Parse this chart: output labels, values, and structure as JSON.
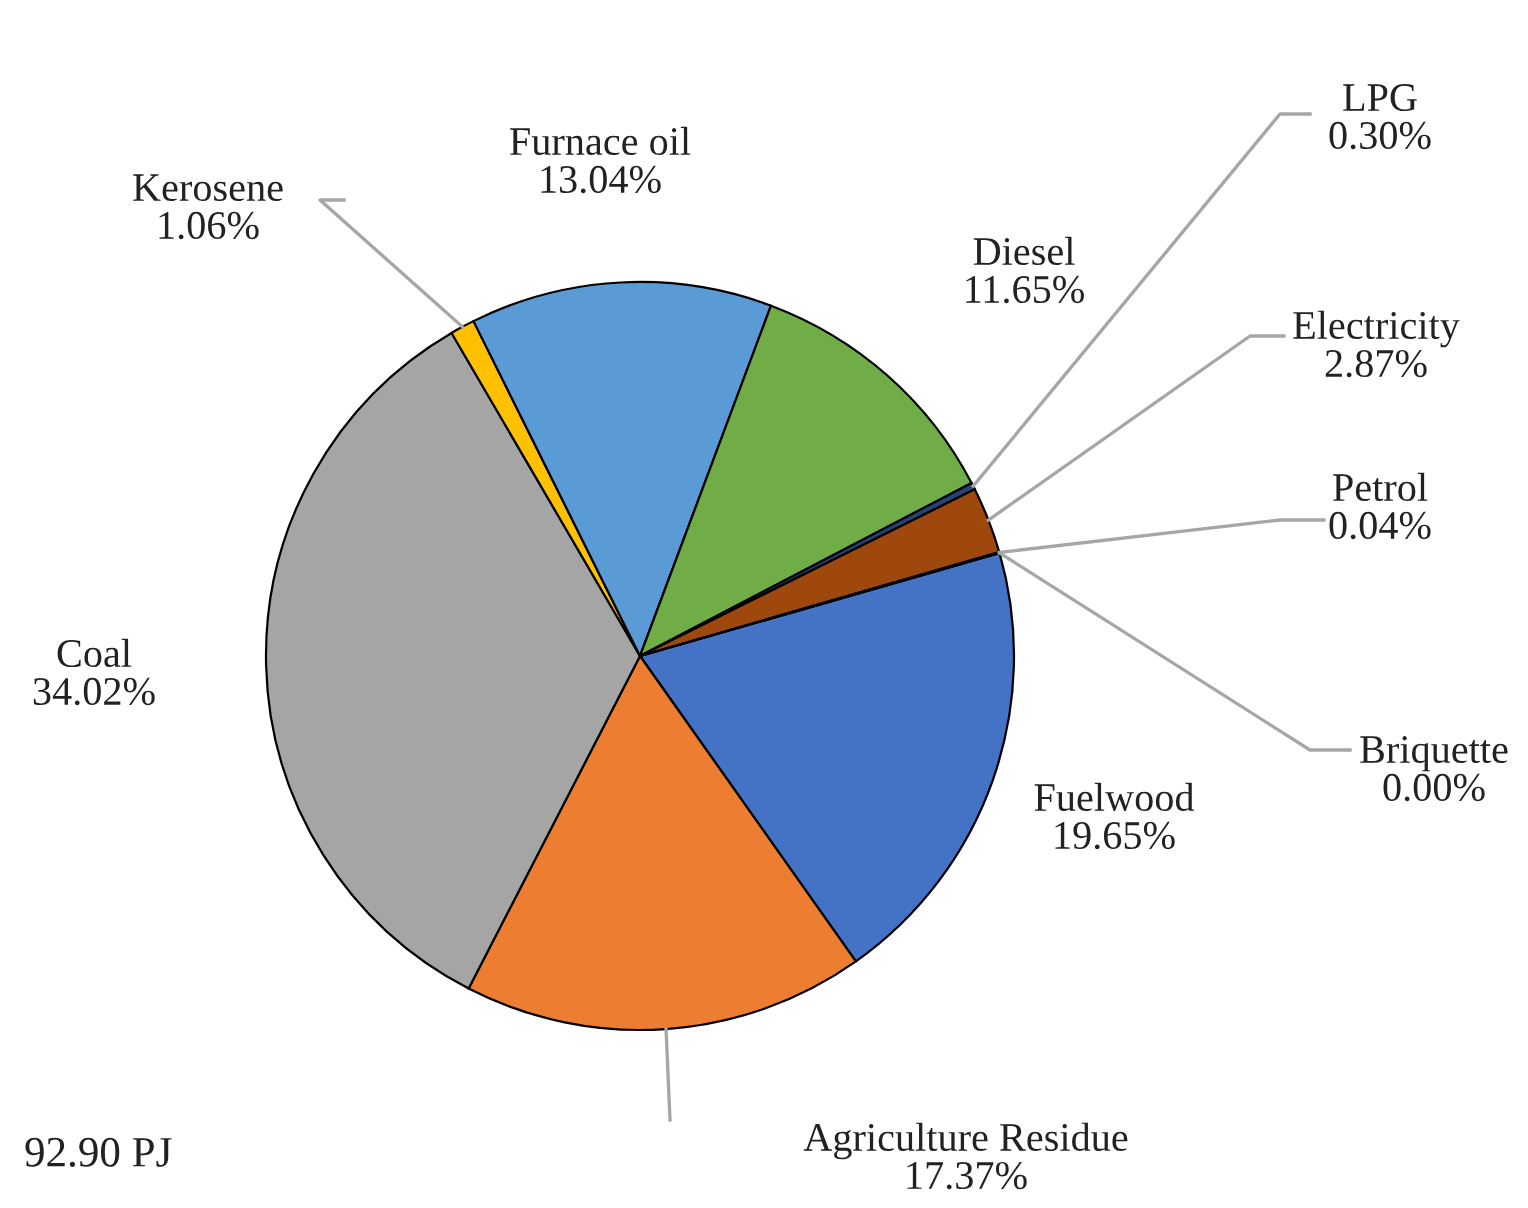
{
  "chart_data": {
    "type": "pie",
    "categories": [
      "Fuelwood",
      "Agriculture Residue",
      "Coal",
      "Kerosene",
      "Furnace oil",
      "Diesel",
      "LPG",
      "Electricity",
      "Petrol",
      "Briquette"
    ],
    "values": [
      19.65,
      17.37,
      34.02,
      1.06,
      13.04,
      11.65,
      0.3,
      2.87,
      0.04,
      0.0
    ],
    "colors": [
      "#4472c4",
      "#ed7d31",
      "#a5a5a5",
      "#ffc000",
      "#5b9bd5",
      "#70ad47",
      "#264478",
      "#9e480e",
      "#636363",
      "#997300"
    ],
    "value_labels": [
      "19.65%",
      "17.37%",
      "34.02%",
      "1.06%",
      "13.04%",
      "11.65%",
      "0.30%",
      "2.87%",
      "0.04%",
      "0.00%"
    ],
    "annotations": [
      "92.90 PJ"
    ]
  }
}
